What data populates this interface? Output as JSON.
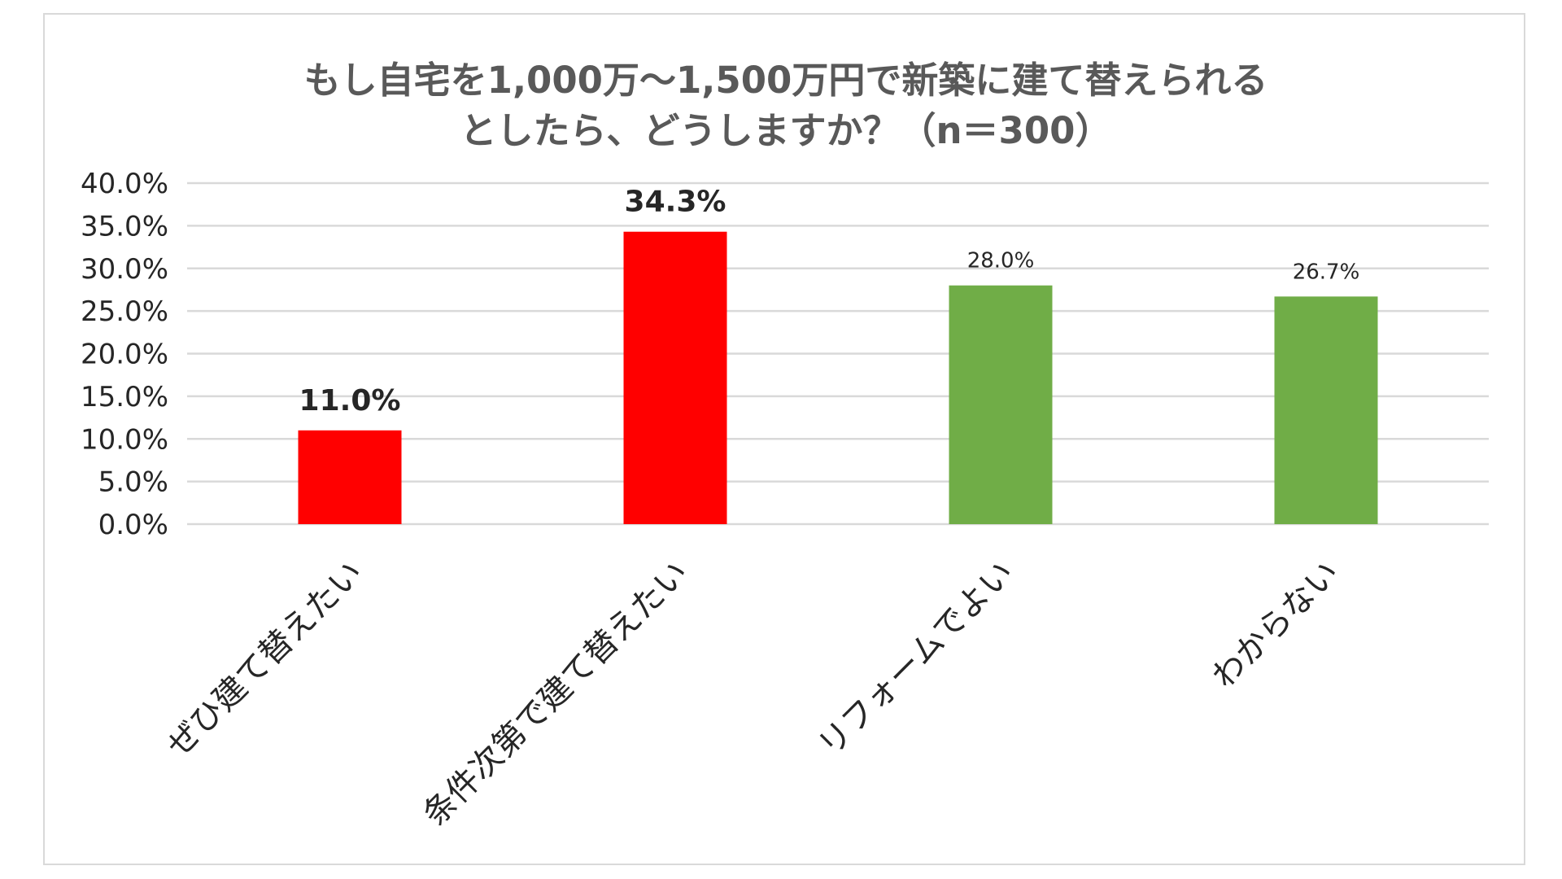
{
  "chart_data": {
    "type": "bar",
    "title_lines": [
      "もし自宅を1,000万～1,500万円で新築に建て替えられる",
      "としたら、どうしますか？（n＝300）"
    ],
    "categories": [
      "ぜひ建て替えたい",
      "条件次第で建て替えたい",
      "リフォームでよい",
      "わからない"
    ],
    "values": [
      11.0,
      34.3,
      28.0,
      26.7
    ],
    "data_labels": [
      "11.0%",
      "34.3%",
      "28.0%",
      "26.7%"
    ],
    "bar_colors": [
      "#ff0000",
      "#ff0000",
      "#70ad47",
      "#70ad47"
    ],
    "label_emphasis": [
      true,
      true,
      false,
      false
    ],
    "ylim": [
      0,
      40
    ],
    "y_ticks": [
      0,
      5,
      10,
      15,
      20,
      25,
      30,
      35,
      40
    ],
    "y_tick_labels": [
      "0.0%",
      "5.0%",
      "10.0%",
      "15.0%",
      "20.0%",
      "25.0%",
      "30.0%",
      "35.0%",
      "40.0%"
    ],
    "grid": true,
    "legend": "none",
    "xlabel": "",
    "ylabel": ""
  }
}
